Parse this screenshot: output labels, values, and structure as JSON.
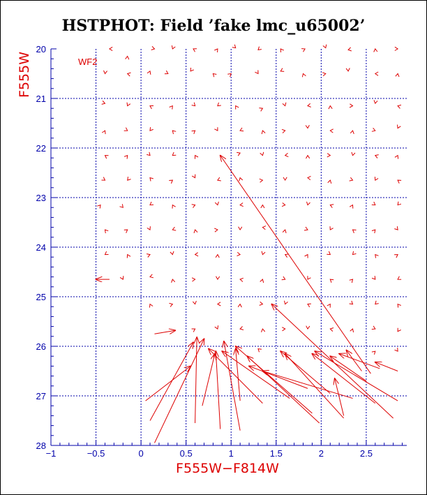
{
  "chart_data": {
    "type": "scatter",
    "title": "HSTPHOT: Field ’fake lmc_u65002’",
    "xlabel": "F555W−F814W",
    "ylabel": "F555W",
    "annotation": "WF2",
    "xlim": [
      -1.0,
      2.95
    ],
    "ylim": [
      28.0,
      20.0
    ],
    "x_ticks": [
      "−1",
      "−0.5",
      "0",
      "0.5",
      "1",
      "1.5",
      "2",
      "2.5"
    ],
    "x_tick_values": [
      -1,
      -0.5,
      0,
      0.5,
      1,
      1.5,
      2,
      2.5
    ],
    "y_ticks": [
      "20",
      "21",
      "22",
      "23",
      "24",
      "25",
      "26",
      "27",
      "28"
    ],
    "y_tick_values": [
      20,
      21,
      22,
      23,
      24,
      25,
      26,
      27,
      28
    ],
    "grid": true,
    "colors": {
      "points": "#dd0000",
      "axes": "#0000aa",
      "grid": "#0000aa",
      "title": "#000000"
    },
    "vectors": [
      {
        "x1": 0.88,
        "y1": 27.67,
        "x2": 0.83,
        "y2": 26.1
      },
      {
        "x1": 0.6,
        "y1": 27.55,
        "x2": 0.62,
        "y2": 25.82
      },
      {
        "x1": 0.1,
        "y1": 27.5,
        "x2": 0.58,
        "y2": 25.92
      },
      {
        "x1": 0.05,
        "y1": 27.1,
        "x2": 0.55,
        "y2": 26.4
      },
      {
        "x1": 0.15,
        "y1": 27.95,
        "x2": 0.7,
        "y2": 25.85
      },
      {
        "x1": 1.1,
        "y1": 27.1,
        "x2": 1.05,
        "y2": 26.05
      },
      {
        "x1": 1.1,
        "y1": 27.7,
        "x2": 0.92,
        "y2": 25.9
      },
      {
        "x1": 0.68,
        "y1": 27.2,
        "x2": 0.82,
        "y2": 26.15
      },
      {
        "x1": 1.35,
        "y1": 27.15,
        "x2": 0.75,
        "y2": 26.05
      },
      {
        "x1": 1.65,
        "y1": 27.05,
        "x2": 0.9,
        "y2": 26.1
      },
      {
        "x1": 1.9,
        "y1": 27.35,
        "x2": 1.05,
        "y2": 26.0
      },
      {
        "x1": 1.98,
        "y1": 27.55,
        "x2": 1.18,
        "y2": 26.2
      },
      {
        "x1": 2.1,
        "y1": 26.95,
        "x2": 1.55,
        "y2": 26.1
      },
      {
        "x1": 2.25,
        "y1": 27.45,
        "x2": 1.6,
        "y2": 26.15
      },
      {
        "x1": 1.85,
        "y1": 26.85,
        "x2": 1.2,
        "y2": 26.4
      },
      {
        "x1": 2.35,
        "y1": 27.05,
        "x2": 1.35,
        "y2": 26.5
      },
      {
        "x1": 2.25,
        "y1": 27.4,
        "x2": 2.15,
        "y2": 26.65
      },
      {
        "x1": 2.6,
        "y1": 27.15,
        "x2": 1.9,
        "y2": 26.15
      },
      {
        "x1": 2.85,
        "y1": 27.1,
        "x2": 1.93,
        "y2": 26.1
      },
      {
        "x1": 2.5,
        "y1": 26.7,
        "x2": 2.1,
        "y2": 26.2
      },
      {
        "x1": 2.65,
        "y1": 26.45,
        "x2": 2.2,
        "y2": 26.15
      },
      {
        "x1": 2.8,
        "y1": 27.45,
        "x2": 1.45,
        "y2": 25.15
      },
      {
        "x1": 2.55,
        "y1": 26.55,
        "x2": 0.88,
        "y2": 22.15
      },
      {
        "x1": 2.45,
        "y1": 26.5,
        "x2": 2.28,
        "y2": 26.08
      },
      {
        "x1": 2.85,
        "y1": 26.5,
        "x2": 2.6,
        "y2": 26.32
      },
      {
        "x1": 0.15,
        "y1": 25.75,
        "x2": 0.38,
        "y2": 25.68
      },
      {
        "x1": -0.35,
        "y1": 24.65,
        "x2": -0.5,
        "y2": 24.65
      }
    ],
    "points": [
      {
        "x": -0.35,
        "y": 20.0
      },
      {
        "x": -0.15,
        "y": 20.15
      },
      {
        "x": 0.15,
        "y": 20.0
      },
      {
        "x": 0.35,
        "y": 20.0
      },
      {
        "x": 0.58,
        "y": 20.0
      },
      {
        "x": 0.85,
        "y": 20.0
      },
      {
        "x": 1.05,
        "y": 19.98
      },
      {
        "x": 1.3,
        "y": 20.02
      },
      {
        "x": 1.55,
        "y": 20.0
      },
      {
        "x": 1.82,
        "y": 20.0
      },
      {
        "x": 2.05,
        "y": 19.98
      },
      {
        "x": 2.3,
        "y": 20.02
      },
      {
        "x": 2.6,
        "y": 20.0
      },
      {
        "x": 2.85,
        "y": 20.0
      },
      {
        "x": -0.4,
        "y": 20.5
      },
      {
        "x": -0.15,
        "y": 20.5
      },
      {
        "x": 0.1,
        "y": 20.45
      },
      {
        "x": 0.3,
        "y": 20.5
      },
      {
        "x": 0.55,
        "y": 20.45
      },
      {
        "x": 0.8,
        "y": 20.5
      },
      {
        "x": 1.0,
        "y": 20.5
      },
      {
        "x": 1.3,
        "y": 20.5
      },
      {
        "x": 1.55,
        "y": 20.45
      },
      {
        "x": 1.8,
        "y": 20.5
      },
      {
        "x": 2.05,
        "y": 20.5
      },
      {
        "x": 2.3,
        "y": 20.45
      },
      {
        "x": 2.6,
        "y": 20.5
      },
      {
        "x": 2.85,
        "y": 20.5
      },
      {
        "x": -0.4,
        "y": 21.1
      },
      {
        "x": -0.15,
        "y": 21.15
      },
      {
        "x": 0.1,
        "y": 21.15
      },
      {
        "x": 0.35,
        "y": 21.15
      },
      {
        "x": 0.6,
        "y": 21.15
      },
      {
        "x": 0.85,
        "y": 21.15
      },
      {
        "x": 1.05,
        "y": 21.15
      },
      {
        "x": 1.35,
        "y": 21.2
      },
      {
        "x": 1.6,
        "y": 21.15
      },
      {
        "x": 1.85,
        "y": 21.15
      },
      {
        "x": 2.1,
        "y": 21.15
      },
      {
        "x": 2.35,
        "y": 21.15
      },
      {
        "x": 2.6,
        "y": 21.1
      },
      {
        "x": 2.85,
        "y": 21.15
      },
      {
        "x": -0.4,
        "y": 21.65
      },
      {
        "x": -0.15,
        "y": 21.65
      },
      {
        "x": 0.1,
        "y": 21.65
      },
      {
        "x": 0.35,
        "y": 21.65
      },
      {
        "x": 0.6,
        "y": 21.65
      },
      {
        "x": 0.85,
        "y": 21.65
      },
      {
        "x": 1.1,
        "y": 21.65
      },
      {
        "x": 1.35,
        "y": 21.65
      },
      {
        "x": 1.6,
        "y": 21.65
      },
      {
        "x": 1.85,
        "y": 21.6
      },
      {
        "x": 2.1,
        "y": 21.65
      },
      {
        "x": 2.35,
        "y": 21.65
      },
      {
        "x": 2.6,
        "y": 21.65
      },
      {
        "x": 2.85,
        "y": 21.6
      },
      {
        "x": -0.4,
        "y": 22.15
      },
      {
        "x": -0.15,
        "y": 22.15
      },
      {
        "x": 0.1,
        "y": 22.15
      },
      {
        "x": 0.35,
        "y": 22.15
      },
      {
        "x": 0.6,
        "y": 22.15
      },
      {
        "x": 1.1,
        "y": 22.1
      },
      {
        "x": 1.35,
        "y": 22.15
      },
      {
        "x": 1.6,
        "y": 22.15
      },
      {
        "x": 1.85,
        "y": 22.15
      },
      {
        "x": 2.1,
        "y": 22.15
      },
      {
        "x": 2.35,
        "y": 22.15
      },
      {
        "x": 2.6,
        "y": 22.15
      },
      {
        "x": 2.85,
        "y": 22.15
      },
      {
        "x": -0.4,
        "y": 22.65
      },
      {
        "x": -0.15,
        "y": 22.65
      },
      {
        "x": 0.1,
        "y": 22.6
      },
      {
        "x": 0.35,
        "y": 22.65
      },
      {
        "x": 0.6,
        "y": 22.6
      },
      {
        "x": 0.85,
        "y": 22.65
      },
      {
        "x": 1.1,
        "y": 22.6
      },
      {
        "x": 1.35,
        "y": 22.65
      },
      {
        "x": 1.6,
        "y": 22.65
      },
      {
        "x": 1.85,
        "y": 22.6
      },
      {
        "x": 2.1,
        "y": 22.65
      },
      {
        "x": 2.35,
        "y": 22.65
      },
      {
        "x": 2.6,
        "y": 22.65
      },
      {
        "x": 2.85,
        "y": 22.65
      },
      {
        "x": -0.45,
        "y": 23.15
      },
      {
        "x": -0.2,
        "y": 23.2
      },
      {
        "x": 0.1,
        "y": 23.15
      },
      {
        "x": 0.35,
        "y": 23.15
      },
      {
        "x": 0.6,
        "y": 23.15
      },
      {
        "x": 0.85,
        "y": 23.15
      },
      {
        "x": 1.1,
        "y": 23.15
      },
      {
        "x": 1.35,
        "y": 23.15
      },
      {
        "x": 1.6,
        "y": 23.15
      },
      {
        "x": 1.85,
        "y": 23.15
      },
      {
        "x": 2.1,
        "y": 23.15
      },
      {
        "x": 2.35,
        "y": 23.15
      },
      {
        "x": 2.6,
        "y": 23.15
      },
      {
        "x": 2.85,
        "y": 23.15
      },
      {
        "x": -0.4,
        "y": 23.65
      },
      {
        "x": -0.15,
        "y": 23.65
      },
      {
        "x": 0.1,
        "y": 23.65
      },
      {
        "x": 0.35,
        "y": 23.65
      },
      {
        "x": 0.6,
        "y": 23.65
      },
      {
        "x": 0.85,
        "y": 23.65
      },
      {
        "x": 1.1,
        "y": 23.65
      },
      {
        "x": 1.35,
        "y": 23.6
      },
      {
        "x": 1.6,
        "y": 23.65
      },
      {
        "x": 1.85,
        "y": 23.65
      },
      {
        "x": 2.1,
        "y": 23.65
      },
      {
        "x": 2.35,
        "y": 23.65
      },
      {
        "x": 2.6,
        "y": 23.65
      },
      {
        "x": 2.85,
        "y": 23.65
      },
      {
        "x": -0.4,
        "y": 24.15
      },
      {
        "x": -0.15,
        "y": 24.15
      },
      {
        "x": 0.1,
        "y": 24.15
      },
      {
        "x": 0.35,
        "y": 24.15
      },
      {
        "x": 0.6,
        "y": 24.15
      },
      {
        "x": 0.85,
        "y": 24.15
      },
      {
        "x": 1.1,
        "y": 24.15
      },
      {
        "x": 1.35,
        "y": 24.15
      },
      {
        "x": 1.6,
        "y": 24.15
      },
      {
        "x": 1.85,
        "y": 24.15
      },
      {
        "x": 2.1,
        "y": 24.15
      },
      {
        "x": 2.35,
        "y": 24.15
      },
      {
        "x": 2.6,
        "y": 24.15
      },
      {
        "x": 2.85,
        "y": 24.15
      },
      {
        "x": -0.2,
        "y": 24.65
      },
      {
        "x": 0.1,
        "y": 24.6
      },
      {
        "x": 0.35,
        "y": 24.65
      },
      {
        "x": 0.6,
        "y": 24.65
      },
      {
        "x": 0.85,
        "y": 24.65
      },
      {
        "x": 1.1,
        "y": 24.65
      },
      {
        "x": 1.35,
        "y": 24.65
      },
      {
        "x": 1.6,
        "y": 24.65
      },
      {
        "x": 1.85,
        "y": 24.65
      },
      {
        "x": 2.1,
        "y": 24.65
      },
      {
        "x": 2.35,
        "y": 24.65
      },
      {
        "x": 2.6,
        "y": 24.65
      },
      {
        "x": 2.85,
        "y": 24.65
      },
      {
        "x": 0.1,
        "y": 25.15
      },
      {
        "x": 0.35,
        "y": 25.15
      },
      {
        "x": 0.6,
        "y": 25.15
      },
      {
        "x": 0.85,
        "y": 25.15
      },
      {
        "x": 1.1,
        "y": 25.15
      },
      {
        "x": 1.35,
        "y": 25.15
      },
      {
        "x": 1.6,
        "y": 25.15
      },
      {
        "x": 1.85,
        "y": 25.15
      },
      {
        "x": 2.1,
        "y": 25.15
      },
      {
        "x": 2.35,
        "y": 25.15
      },
      {
        "x": 2.6,
        "y": 25.15
      },
      {
        "x": 2.85,
        "y": 25.15
      },
      {
        "x": 0.6,
        "y": 25.65
      },
      {
        "x": 0.85,
        "y": 25.65
      },
      {
        "x": 1.1,
        "y": 25.65
      },
      {
        "x": 1.35,
        "y": 25.65
      },
      {
        "x": 1.6,
        "y": 25.65
      },
      {
        "x": 1.85,
        "y": 25.65
      },
      {
        "x": 2.1,
        "y": 25.65
      },
      {
        "x": 2.35,
        "y": 25.65
      },
      {
        "x": 2.6,
        "y": 25.65
      },
      {
        "x": 2.85,
        "y": 25.7
      },
      {
        "x": 1.3,
        "y": 26.05
      },
      {
        "x": 2.6,
        "y": 26.1
      },
      {
        "x": 2.85,
        "y": 26.1
      }
    ]
  }
}
